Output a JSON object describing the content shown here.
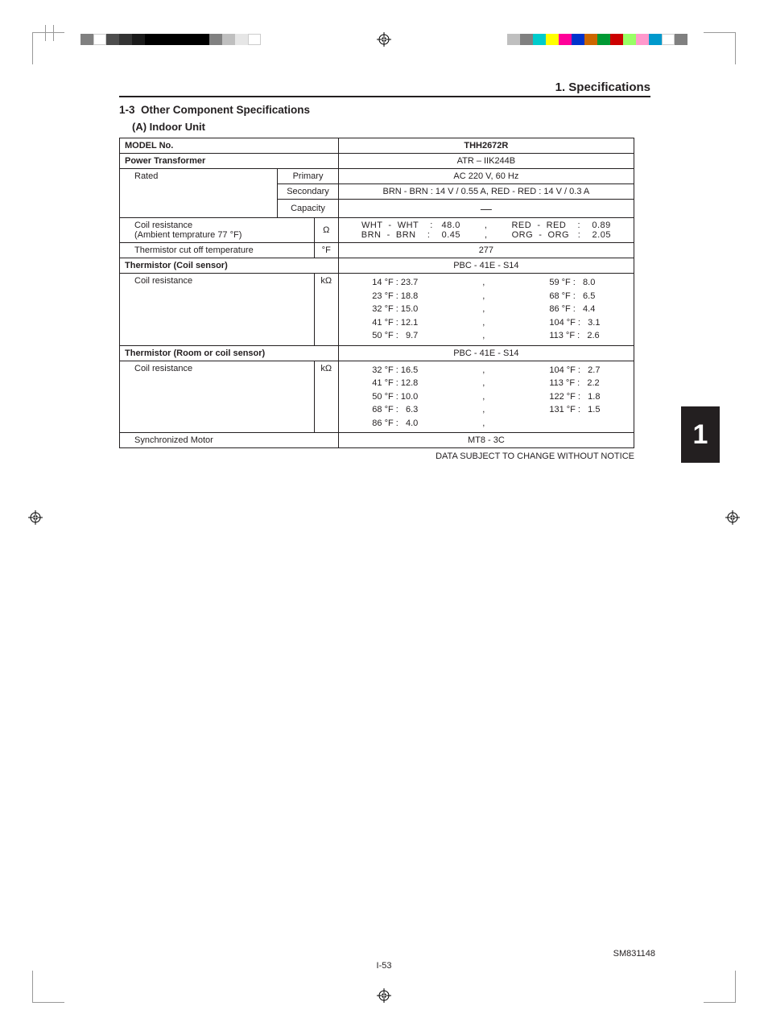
{
  "swatchesLeft": [
    "#808080",
    "#ffffff",
    "#4d4d4d",
    "#333333",
    "#1a1a1a",
    "#000000",
    "#000000",
    "#000000",
    "#000000",
    "#000000",
    "#808080",
    "#bfbfbf",
    "#e6e6e6",
    "#ffffff"
  ],
  "swatchesRight": [
    "#808080",
    "#ffffff",
    "#0099cc",
    "#ff99cc",
    "#99ff66",
    "#cc0000",
    "#009933",
    "#cc6600",
    "#0033cc",
    "#ff0099",
    "#ffff00",
    "#00cccc",
    "#808080",
    "#bfbfbf"
  ],
  "header": {
    "chapter": "1. Specifications"
  },
  "section": {
    "num": "1-3",
    "title": "Other Component Specifications",
    "sub": "(A)  Indoor Unit"
  },
  "table": {
    "modelLabel": "MODEL No",
    "modelValue": "THH2672R",
    "ptLabel": "Power Transformer",
    "ptValue": "ATR – IIK244B",
    "rated": {
      "label": "Rated",
      "primary": {
        "label": "Primary",
        "value": "AC 220 V, 60 Hz"
      },
      "secondary": {
        "label": "Secondary",
        "value": "BRN - BRN : 14 V / 0.55 A, RED - RED : 14 V / 0.3 A"
      },
      "capacity": {
        "label": "Capacity",
        "value": "—"
      }
    },
    "coilRes": {
      "label1": "Coil resistance",
      "label2": "(Ambient temprature 77 °F)",
      "unit": "Ω",
      "pairs": [
        "WHT  -  WHT    :   48.0",
        "RED  -  RED    :    0.89",
        "BRN  -  BRN    :    0.45",
        "ORG  -  ORG   :    2.05"
      ]
    },
    "cutoff": {
      "label": "Thermistor cut off temperature",
      "unit": "°F",
      "value": "277"
    },
    "thermCoil": {
      "label": "Thermistor (Coil sensor)",
      "value": "PBC - 41E - S14",
      "res": {
        "label": "Coil resistance",
        "unit": "kΩ",
        "left": [
          "14 °F : 23.7",
          "23 °F : 18.8",
          "32 °F : 15.0",
          "41 °F : 12.1",
          "50 °F :   9.7"
        ],
        "right": [
          "59 °F :   8.0",
          "68 °F :   6.5",
          "86 °F :   4.4",
          "104 °F :   3.1",
          "113 °F :   2.6"
        ]
      }
    },
    "thermRoom": {
      "label": "Thermistor (Room or coil sensor)",
      "value": "PBC - 41E - S14",
      "res": {
        "label": "Coil resistance",
        "unit": "kΩ",
        "left": [
          "32 °F : 16.5",
          "41 °F : 12.8",
          "50 °F : 10.0",
          "68 °F :   6.3",
          "86 °F :   4.0"
        ],
        "right": [
          "104 °F :   2.7",
          "113 °F :   2.2",
          "122 °F :   1.8",
          "131 °F :   1.5",
          ""
        ]
      }
    },
    "sync": {
      "label": "Synchronized Motor",
      "value": "MT8 - 3C"
    }
  },
  "notice": "DATA SUBJECT TO CHANGE WITHOUT NOTICE",
  "sideTab": "1",
  "pageNum": "I-53",
  "docId": "SM831148"
}
